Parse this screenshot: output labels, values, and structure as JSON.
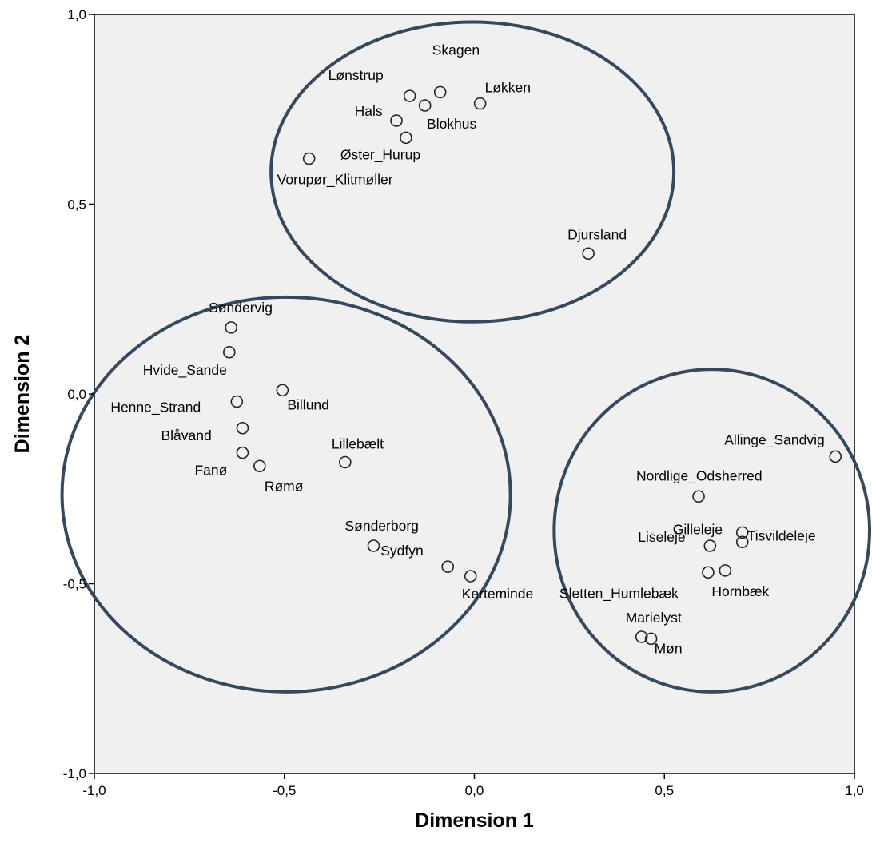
{
  "chart_data": {
    "type": "scatter",
    "xlabel": "Dimension 1",
    "ylabel": "Dimension 2",
    "xlim": [
      -1.0,
      1.0
    ],
    "ylim": [
      -1.0,
      1.0
    ],
    "x_ticks": [
      -1.0,
      -0.5,
      0.0,
      0.5,
      1.0
    ],
    "x_tick_labels": [
      "-1,0",
      "-0,5",
      "0,0",
      "0,5",
      "1,0"
    ],
    "y_ticks": [
      1.0,
      0.5,
      0.0,
      -0.5,
      -1.0
    ],
    "y_tick_labels": [
      "1,0",
      "0,5",
      "0,0",
      "-0,5",
      "-1,0"
    ],
    "grid": false,
    "plot_background": "#f0f0f0",
    "point_color": "#222222",
    "cluster_color": "#34495e",
    "points": [
      {
        "label": "Skagen",
        "x": -0.09,
        "y": 0.795
      },
      {
        "label": "Lønstrup",
        "x": -0.17,
        "y": 0.785
      },
      {
        "label": "Løkken",
        "x": 0.015,
        "y": 0.765
      },
      {
        "label": "Hals",
        "x": -0.13,
        "y": 0.76
      },
      {
        "label": "Blokhus",
        "x": -0.205,
        "y": 0.72
      },
      {
        "label": "Øster_Hurup",
        "x": -0.18,
        "y": 0.675
      },
      {
        "label": "Vorupør_Klitmøller",
        "x": -0.435,
        "y": 0.62
      },
      {
        "label": "Djursland",
        "x": 0.3,
        "y": 0.37
      },
      {
        "label": "Søndervig",
        "x": -0.64,
        "y": 0.175
      },
      {
        "label": "Hvide_Sande",
        "x": -0.645,
        "y": 0.11
      },
      {
        "label": "Billund",
        "x": -0.505,
        "y": 0.01
      },
      {
        "label": "Henne_Strand",
        "x": -0.625,
        "y": -0.02
      },
      {
        "label": "Blåvand",
        "x": -0.61,
        "y": -0.09
      },
      {
        "label": "Fanø",
        "x": -0.61,
        "y": -0.155
      },
      {
        "label": "Rømø",
        "x": -0.565,
        "y": -0.19
      },
      {
        "label": "Lillebælt",
        "x": -0.34,
        "y": -0.18
      },
      {
        "label": "Sønderborg",
        "x": -0.265,
        "y": -0.4
      },
      {
        "label": "Sydfyn",
        "x": -0.07,
        "y": -0.455
      },
      {
        "label": "Kerteminde",
        "x": -0.01,
        "y": -0.48
      },
      {
        "label": "Allinge_Sandvig",
        "x": 0.95,
        "y": -0.165
      },
      {
        "label": "Nordlige_Odsherred",
        "x": 0.59,
        "y": -0.27
      },
      {
        "label": "Gilleleje",
        "x": 0.705,
        "y": -0.365
      },
      {
        "label": "Tisvildeleje",
        "x": 0.705,
        "y": -0.39
      },
      {
        "label": "Liseleje",
        "x": 0.62,
        "y": -0.4
      },
      {
        "label": "Sletten_Humlebæk",
        "x": 0.615,
        "y": -0.47
      },
      {
        "label": "Hornbæk",
        "x": 0.66,
        "y": -0.465
      },
      {
        "label": "Marielyst",
        "x": 0.44,
        "y": -0.64
      },
      {
        "label": "Møn",
        "x": 0.465,
        "y": -0.645
      }
    ],
    "clusters": [
      {
        "members": [
          "Skagen",
          "Lønstrup",
          "Løkken",
          "Hals",
          "Blokhus",
          "Øster_Hurup",
          "Vorupør_Klitmøller",
          "Djursland"
        ],
        "cx": -0.005,
        "cy": 0.585,
        "rx": 0.53,
        "ry": 0.395
      },
      {
        "members": [
          "Søndervig",
          "Hvide_Sande",
          "Billund",
          "Henne_Strand",
          "Blåvand",
          "Fanø",
          "Rømø",
          "Lillebælt",
          "Sønderborg",
          "Sydfyn",
          "Kerteminde"
        ],
        "cx": -0.495,
        "cy": -0.265,
        "rx": 0.59,
        "ry": 0.52
      },
      {
        "members": [
          "Allinge_Sandvig",
          "Nordlige_Odsherred",
          "Gilleleje",
          "Tisvildeleje",
          "Liseleje",
          "Sletten_Humlebæk",
          "Hornbæk",
          "Marielyst",
          "Møn"
        ],
        "cx": 0.625,
        "cy": -0.36,
        "rx": 0.415,
        "ry": 0.425
      }
    ]
  }
}
